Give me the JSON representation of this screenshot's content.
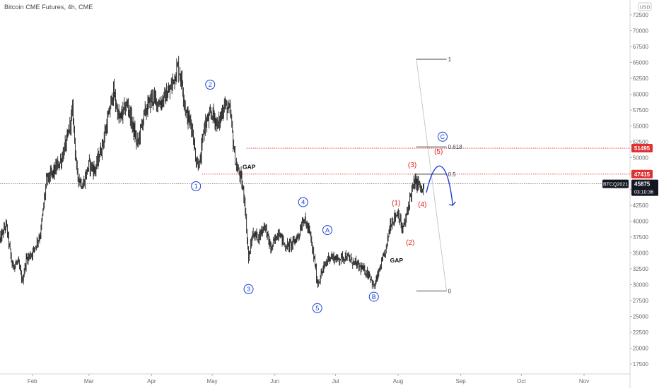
{
  "header": {
    "symbol_title": "Bitcoin CME Futures",
    "interval": "4h",
    "exchange": "CME"
  },
  "colors": {
    "candle": "#222222",
    "wave_blue": "#1a3fd4",
    "wave_red": "#e21c1c",
    "level_red": "#e03030",
    "price_line": "#555555",
    "axis_text": "#6b6b6b"
  },
  "chart_data": {
    "type": "candlestick",
    "currency_label": "USD",
    "ylim": [
      15500,
      74500
    ],
    "y_ticks": [
      17500,
      20000,
      22500,
      25000,
      27500,
      30000,
      32500,
      35000,
      37500,
      40000,
      42500,
      45000,
      47500,
      50000,
      52500,
      55000,
      57500,
      60000,
      62500,
      65000,
      67500,
      70000,
      72500
    ],
    "x_labels": [
      {
        "label": "Feb",
        "date": "2021-02-01"
      },
      {
        "label": "Mar",
        "date": "2021-03-01"
      },
      {
        "label": "Apr",
        "date": "2021-04-01"
      },
      {
        "label": "May",
        "date": "2021-05-01"
      },
      {
        "label": "Jun",
        "date": "2021-06-01"
      },
      {
        "label": "Jul",
        "date": "2021-07-01"
      },
      {
        "label": "Aug",
        "date": "2021-08-01"
      },
      {
        "label": "Sep",
        "date": "2021-09-01"
      },
      {
        "label": "Oct",
        "date": "2021-10-01"
      },
      {
        "label": "Nov",
        "date": "2021-11-01"
      }
    ],
    "price_path": [
      {
        "date": "2021-01-16",
        "price": 37000
      },
      {
        "date": "2021-01-19",
        "price": 39500
      },
      {
        "date": "2021-01-22",
        "price": 33000
      },
      {
        "date": "2021-01-25",
        "price": 33500
      },
      {
        "date": "2021-01-27",
        "price": 30500
      },
      {
        "date": "2021-01-29",
        "price": 34000
      },
      {
        "date": "2021-02-01",
        "price": 35000
      },
      {
        "date": "2021-02-05",
        "price": 38000
      },
      {
        "date": "2021-02-08",
        "price": 46500
      },
      {
        "date": "2021-02-11",
        "price": 47500
      },
      {
        "date": "2021-02-15",
        "price": 49500
      },
      {
        "date": "2021-02-18",
        "price": 52500
      },
      {
        "date": "2021-02-21",
        "price": 57500
      },
      {
        "date": "2021-02-23",
        "price": 47500
      },
      {
        "date": "2021-02-26",
        "price": 45500
      },
      {
        "date": "2021-03-01",
        "price": 49000
      },
      {
        "date": "2021-03-04",
        "price": 48000
      },
      {
        "date": "2021-03-08",
        "price": 52500
      },
      {
        "date": "2021-03-11",
        "price": 57000
      },
      {
        "date": "2021-03-13",
        "price": 60500
      },
      {
        "date": "2021-03-16",
        "price": 56000
      },
      {
        "date": "2021-03-20",
        "price": 58500
      },
      {
        "date": "2021-03-25",
        "price": 52000
      },
      {
        "date": "2021-03-28",
        "price": 56500
      },
      {
        "date": "2021-04-01",
        "price": 59500
      },
      {
        "date": "2021-04-05",
        "price": 58500
      },
      {
        "date": "2021-04-10",
        "price": 60500
      },
      {
        "date": "2021-04-14",
        "price": 64500
      },
      {
        "date": "2021-04-16",
        "price": 62000
      },
      {
        "date": "2021-04-18",
        "price": 57000
      },
      {
        "date": "2021-04-21",
        "price": 55000
      },
      {
        "date": "2021-04-23",
        "price": 49500
      },
      {
        "date": "2021-04-25",
        "price": 49000
      },
      {
        "date": "2021-04-27",
        "price": 55000
      },
      {
        "date": "2021-05-01",
        "price": 57000
      },
      {
        "date": "2021-05-04",
        "price": 55000
      },
      {
        "date": "2021-05-07",
        "price": 58500
      },
      {
        "date": "2021-05-10",
        "price": 57000
      },
      {
        "date": "2021-05-12",
        "price": 50500
      },
      {
        "date": "2021-05-13",
        "price": 48500
      },
      {
        "date": "2021-05-15",
        "price": 47000
      },
      {
        "date": "2021-05-17",
        "price": 43500
      },
      {
        "date": "2021-05-19",
        "price": 34000
      },
      {
        "date": "2021-05-21",
        "price": 38000
      },
      {
        "date": "2021-05-24",
        "price": 37500
      },
      {
        "date": "2021-05-27",
        "price": 39500
      },
      {
        "date": "2021-05-30",
        "price": 35500
      },
      {
        "date": "2021-06-03",
        "price": 38500
      },
      {
        "date": "2021-06-06",
        "price": 36000
      },
      {
        "date": "2021-06-10",
        "price": 36500
      },
      {
        "date": "2021-06-13",
        "price": 38000
      },
      {
        "date": "2021-06-15",
        "price": 40500
      },
      {
        "date": "2021-06-18",
        "price": 38500
      },
      {
        "date": "2021-06-21",
        "price": 33000
      },
      {
        "date": "2021-06-22",
        "price": 30000
      },
      {
        "date": "2021-06-25",
        "price": 32500
      },
      {
        "date": "2021-06-28",
        "price": 34500
      },
      {
        "date": "2021-07-02",
        "price": 34000
      },
      {
        "date": "2021-07-06",
        "price": 34500
      },
      {
        "date": "2021-07-10",
        "price": 33500
      },
      {
        "date": "2021-07-14",
        "price": 32500
      },
      {
        "date": "2021-07-18",
        "price": 31500
      },
      {
        "date": "2021-07-20",
        "price": 29500
      },
      {
        "date": "2021-07-23",
        "price": 32500
      },
      {
        "date": "2021-07-26",
        "price": 35500
      },
      {
        "date": "2021-07-28",
        "price": 39500
      },
      {
        "date": "2021-07-30",
        "price": 40500
      },
      {
        "date": "2021-08-01",
        "price": 41500
      },
      {
        "date": "2021-08-03",
        "price": 38500
      },
      {
        "date": "2021-08-05",
        "price": 40500
      },
      {
        "date": "2021-08-07",
        "price": 44000
      },
      {
        "date": "2021-08-09",
        "price": 46000
      },
      {
        "date": "2021-08-11",
        "price": 46000
      },
      {
        "date": "2021-08-13",
        "price": 44500
      },
      {
        "date": "2021-08-14",
        "price": 45875
      }
    ],
    "horizontal_levels": [
      {
        "price": 51495,
        "label": "51495",
        "date_from": "2021-05-18",
        "style": "dotted-red"
      },
      {
        "price": 47415,
        "label": "47415",
        "date_from": "2021-04-26",
        "style": "dotted-red"
      }
    ],
    "current_price": {
      "label": "BTCQ2021",
      "price": 45875,
      "value_label": "45875",
      "countdown": "03:10:36"
    },
    "fibonacci": {
      "date_from": "2021-08-10",
      "date_to": "2021-08-25",
      "levels": [
        {
          "ratio_label": "1",
          "price": 65500
        },
        {
          "ratio_label": "0.618",
          "price": 51700
        },
        {
          "ratio_label": "0.5",
          "price": 47400
        },
        {
          "ratio_label": "0",
          "price": 29000
        }
      ]
    },
    "gap_labels": [
      {
        "text": "GAP",
        "date": "2021-05-16",
        "price": 48200
      },
      {
        "text": "GAP",
        "date": "2021-07-28",
        "price": 33500
      }
    ],
    "wave_labels_blue_circled": [
      {
        "text": "1",
        "date": "2021-04-23",
        "price": 45500
      },
      {
        "text": "2",
        "date": "2021-04-30",
        "price": 61500
      },
      {
        "text": "3",
        "date": "2021-05-19",
        "price": 29300
      },
      {
        "text": "4",
        "date": "2021-06-15",
        "price": 43000
      },
      {
        "text": "5",
        "date": "2021-06-22",
        "price": 26300
      },
      {
        "text": "A",
        "date": "2021-06-27",
        "price": 38600
      },
      {
        "text": "B",
        "date": "2021-07-20",
        "price": 28100
      },
      {
        "text": "C",
        "date": "2021-08-23",
        "price": 53300
      }
    ],
    "wave_labels_red": [
      {
        "text": "(1)",
        "date": "2021-07-31",
        "price": 42500
      },
      {
        "text": "(2)",
        "date": "2021-08-07",
        "price": 36300
      },
      {
        "text": "(3)",
        "date": "2021-08-08",
        "price": 48500
      },
      {
        "text": "(4)",
        "date": "2021-08-13",
        "price": 42300
      },
      {
        "text": "(5)",
        "date": "2021-08-21",
        "price": 50600
      }
    ],
    "projection_arrow": {
      "points": [
        {
          "date": "2021-08-15",
          "price": 44500
        },
        {
          "date": "2021-08-20",
          "price": 49500
        },
        {
          "date": "2021-08-26",
          "price": 46500
        },
        {
          "date": "2021-08-28",
          "price": 42500
        }
      ]
    }
  }
}
